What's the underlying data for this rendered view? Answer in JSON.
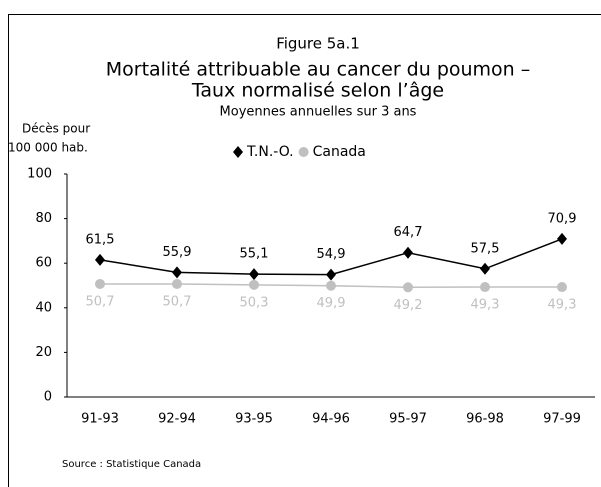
{
  "chart_data": {
    "type": "line",
    "title": [
      "Figure 5a.1",
      "Mortalité attribuable au cancer du poumon –",
      "Taux normalisé selon l’âge"
    ],
    "subtitle": "Moyennes annuelles sur 3 ans",
    "ylabel": [
      "Décès pour",
      "100 000 hab."
    ],
    "source": "Source : Statistique Canada",
    "categories": [
      "91-93",
      "92-94",
      "93-95",
      "94-96",
      "95-97",
      "96-98",
      "97-99"
    ],
    "series": [
      {
        "name": "T.N.-O.",
        "color": "#000000",
        "marker": "diamond",
        "values": [
          61.5,
          55.9,
          55.1,
          54.9,
          64.7,
          57.5,
          70.9
        ],
        "value_labels": [
          "61,5",
          "55,9",
          "55,1",
          "54,9",
          "64,7",
          "57,5",
          "70,9"
        ]
      },
      {
        "name": "Canada",
        "color": "#c0c0c0",
        "marker": "circle",
        "values": [
          50.7,
          50.7,
          50.3,
          49.9,
          49.2,
          49.3,
          49.3
        ],
        "value_labels": [
          "50,7",
          "50,7",
          "50,3",
          "49,9",
          "49,2",
          "49,3",
          "49,3"
        ]
      }
    ],
    "ylim": [
      0,
      100
    ],
    "yticks": [
      0,
      20,
      40,
      60,
      80,
      100
    ],
    "grid": false,
    "legend": "top"
  }
}
